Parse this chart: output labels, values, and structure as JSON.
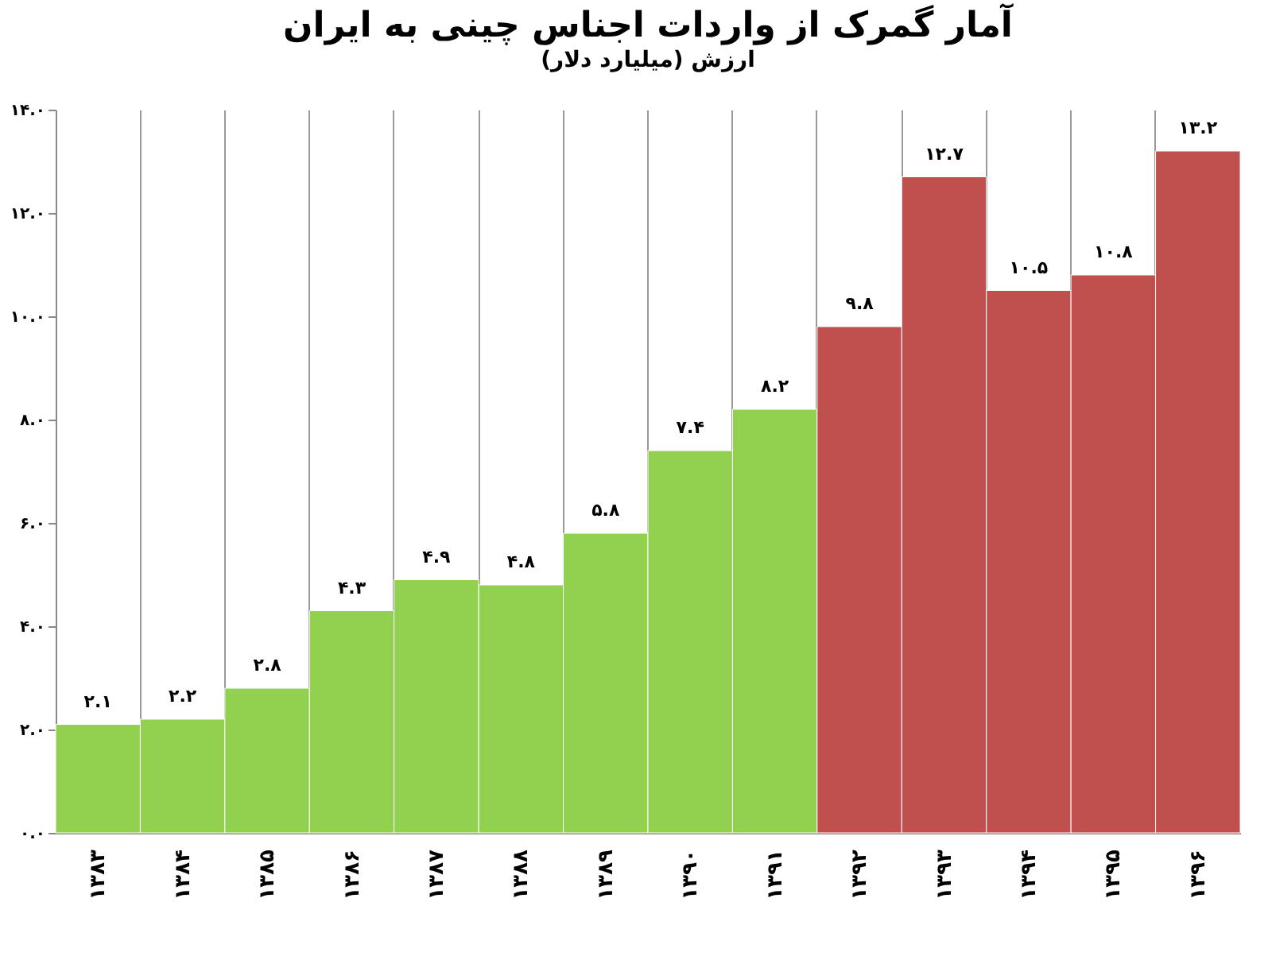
{
  "chart_data": {
    "type": "bar",
    "title": "آمار گمرک از واردات اجناس چینی به ایران",
    "subtitle": "ارزش (میلیارد دلار)",
    "categories": [
      "۱۳۸۳",
      "۱۳۸۴",
      "۱۳۸۵",
      "۱۳۸۶",
      "۱۳۸۷",
      "۱۳۸۸",
      "۱۳۸۹",
      "۱۳۹۰",
      "۱۳۹۱",
      "۱۳۹۲",
      "۱۳۹۳",
      "۱۳۹۴",
      "۱۳۹۵",
      "۱۳۹۶"
    ],
    "values": [
      2.1,
      2.2,
      2.8,
      4.3,
      4.9,
      4.8,
      5.8,
      7.4,
      8.2,
      9.8,
      12.7,
      10.5,
      10.8,
      13.2
    ],
    "colors": [
      "#92d050",
      "#92d050",
      "#92d050",
      "#92d050",
      "#92d050",
      "#92d050",
      "#92d050",
      "#92d050",
      "#92d050",
      "#c0504d",
      "#c0504d",
      "#c0504d",
      "#c0504d",
      "#c0504d"
    ],
    "value_labels": [
      "۲.۱",
      "۲.۲",
      "۲.۸",
      "۴.۳",
      "۴.۹",
      "۴.۸",
      "۵.۸",
      "۷.۴",
      "۸.۲",
      "۹.۸",
      "۱۲.۷",
      "۱۰.۵",
      "۱۰.۸",
      "۱۳.۲"
    ],
    "ylim": [
      0,
      14
    ],
    "yticks": [
      {
        "value": 0,
        "label": "۰.۰"
      },
      {
        "value": 2,
        "label": "۲.۰"
      },
      {
        "value": 4,
        "label": "۴.۰"
      },
      {
        "value": 6,
        "label": "۶.۰"
      },
      {
        "value": 8,
        "label": "۸.۰"
      },
      {
        "value": 10,
        "label": "۱۰.۰"
      },
      {
        "value": 12,
        "label": "۱۲.۰"
      },
      {
        "value": 14,
        "label": "۱۴.۰"
      }
    ],
    "grid": "x"
  }
}
